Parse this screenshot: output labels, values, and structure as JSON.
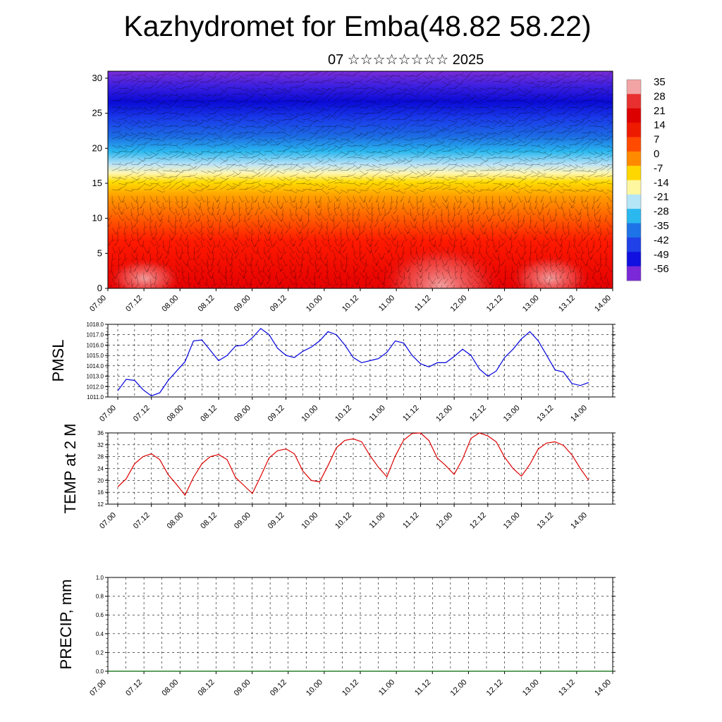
{
  "title": "Kazhydromet for Emba(48.82 58.22)",
  "subtitle": "07 ☆☆☆☆☆☆☆☆ 2025",
  "time_labels": [
    "07.00",
    "07.12",
    "08.00",
    "08.12",
    "09.00",
    "09.12",
    "10.00",
    "10.12",
    "11.00",
    "11.12",
    "12.00",
    "12.12",
    "13.00",
    "13.12",
    "14.00"
  ],
  "chart_data": [
    {
      "type": "heatmap",
      "description_of_axes": "height level vs forecast time, colour = air temperature, overlaid wind barbs",
      "ylim": [
        0,
        31
      ],
      "y_ticks": [
        0,
        5,
        10,
        15,
        20,
        25,
        30
      ],
      "colorbar": {
        "labels": [
          "35",
          "28",
          "21",
          "14",
          "7",
          "0",
          "-7",
          "-14",
          "-21",
          "-28",
          "-35",
          "-42",
          "-49",
          "-56"
        ],
        "colors": [
          "#f2a3a3",
          "#e83030",
          "#dd0000",
          "#ee1a00",
          "#ff4a00",
          "#ff8a00",
          "#ffd700",
          "#fff7a0",
          "#b5e6f7",
          "#2ab8ef",
          "#1e73e6",
          "#2040e8",
          "#1010e0",
          "#7a28d8"
        ]
      }
    },
    {
      "type": "line",
      "ylabel": "PMSL",
      "ylim": [
        1011.0,
        1018.0
      ],
      "y_ticks": [
        "1011.0",
        "1012.0",
        "1013.0",
        "1014.0",
        "1015.0",
        "1016.0",
        "1017.0",
        "1018.0"
      ],
      "color": "#0000dd",
      "values": [
        1011.6,
        1012.7,
        1012.6,
        1011.7,
        1011.1,
        1011.4,
        1012.6,
        1013.5,
        1014.4,
        1016.4,
        1016.5,
        1015.5,
        1014.5,
        1015.0,
        1015.9,
        1016.0,
        1016.7,
        1017.6,
        1017.0,
        1015.7,
        1015.0,
        1014.8,
        1015.4,
        1015.8,
        1016.4,
        1017.3,
        1017.0,
        1016.0,
        1014.8,
        1014.3,
        1014.5,
        1014.7,
        1015.3,
        1016.4,
        1016.2,
        1015.0,
        1014.2,
        1013.9,
        1014.3,
        1014.3,
        1014.9,
        1015.6,
        1015.0,
        1013.7,
        1013.0,
        1013.5,
        1014.8,
        1015.6,
        1016.6,
        1017.3,
        1016.4,
        1015.0,
        1013.6,
        1013.4,
        1012.3,
        1012.1,
        1012.4
      ]
    },
    {
      "type": "line",
      "ylabel": "TEMP at 2 M",
      "ylim": [
        12,
        36
      ],
      "y_ticks": [
        "12",
        "16",
        "20",
        "24",
        "28",
        "32",
        "36"
      ],
      "color": "#dd0000",
      "values": [
        17.8,
        20.5,
        25.6,
        28.0,
        29.0,
        27.0,
        21.9,
        18.6,
        15.0,
        21.0,
        25.6,
        28.0,
        28.7,
        27.0,
        21.0,
        18.3,
        15.6,
        21.4,
        27.6,
        30.0,
        30.6,
        29.0,
        23.2,
        20.0,
        19.5,
        25.0,
        31.0,
        33.5,
        34.0,
        33.0,
        28.3,
        24.4,
        21.2,
        28.2,
        33.6,
        35.8,
        36.0,
        33.4,
        27.5,
        25.0,
        22.0,
        27.2,
        34.2,
        36.0,
        35.0,
        33.0,
        27.8,
        24.0,
        21.4,
        25.4,
        30.6,
        32.6,
        33.0,
        31.8,
        28.6,
        24.0,
        20.0
      ]
    },
    {
      "type": "line",
      "ylabel": "PRECIP, mm",
      "ylim": [
        0.0,
        1.0
      ],
      "y_ticks": [
        "0.0",
        "0.2",
        "0.4",
        "0.6",
        "0.8",
        "1.0"
      ],
      "color": "#006400",
      "values": [
        0,
        0,
        0,
        0,
        0,
        0,
        0,
        0,
        0,
        0,
        0,
        0,
        0,
        0,
        0,
        0,
        0,
        0,
        0,
        0,
        0,
        0,
        0,
        0,
        0,
        0,
        0,
        0,
        0,
        0,
        0,
        0,
        0,
        0,
        0,
        0,
        0,
        0,
        0,
        0,
        0,
        0,
        0,
        0,
        0,
        0,
        0,
        0,
        0,
        0,
        0,
        0,
        0,
        0,
        0,
        0,
        0
      ]
    }
  ]
}
